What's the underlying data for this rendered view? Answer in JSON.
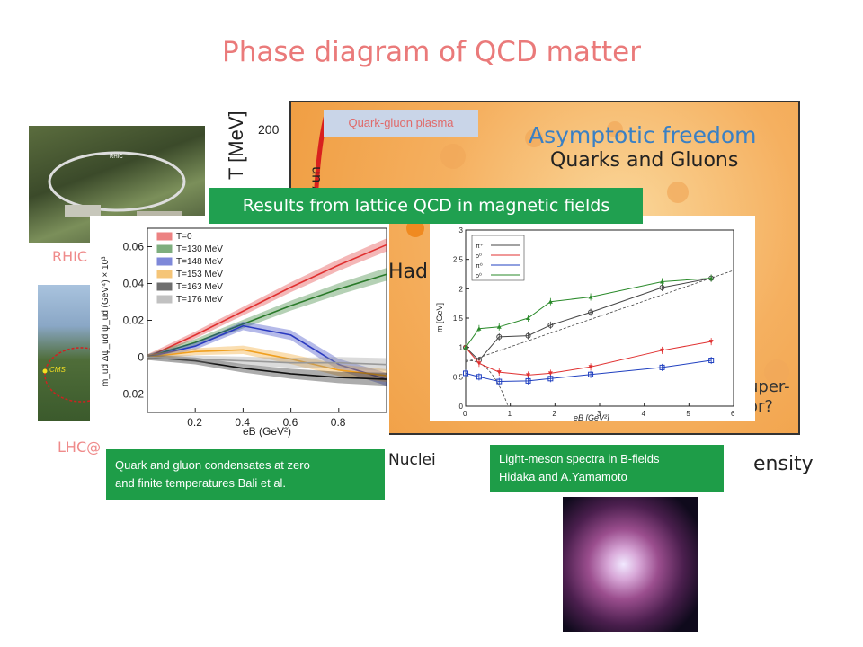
{
  "title": "Phase diagram of QCD matter",
  "labels": {
    "rhic": "RHIC",
    "lhc": "LHC@",
    "cms": "CMS",
    "qgp": "Quark-gluon plasma",
    "lattice": "Results from lattice QCD in magnetic fields",
    "axis_t": "T [MeV]",
    "early": "Early un",
    "tick200": "200",
    "asymptotic": "Asymptotic freedom",
    "quarks_gluons": "Quarks and Gluons",
    "hadron": "Had",
    "nuclei": "Nuclei",
    "super1": "uper-",
    "super2": "or?",
    "density": "ensity"
  },
  "captions": {
    "left_line1": "Quark and gluon condensates at zero",
    "left_line2": "and finite temperatures     Bali et al.",
    "right_line1": "Light-meson spectra in B-fields",
    "right_line2": "Hidaka and A.Yamamoto"
  },
  "colors": {
    "title": "#ea7a7a",
    "green_box": "#1e9d48",
    "qgp_box": "#c9d5e8"
  },
  "left_chart": {
    "ylabel": "m_ud Δψ̄_ud ψ_ud  (GeV⁴) × 10³",
    "xlabel": "eB (GeV²)",
    "xticks": [
      "0.2",
      "0.4",
      "0.6",
      "0.8"
    ],
    "yticks": [
      "0.06",
      "0.04",
      "0.02",
      "0",
      "−0.02"
    ],
    "legend": [
      "T=0",
      "T=130 MeV",
      "T=148 MeV",
      "T=153 MeV",
      "T=163 MeV",
      "T=176 MeV"
    ]
  },
  "right_chart": {
    "ylabel": "m [GeV]",
    "xlabel": "eB [GeV²]",
    "xticks": [
      "0",
      "1",
      "2",
      "3",
      "4",
      "5",
      "6"
    ],
    "yticks": [
      "3",
      "2.5",
      "2",
      "1.5",
      "1",
      "0.5",
      "0"
    ],
    "legend": [
      "π⁺",
      "ρ⁰",
      "π⁰",
      "ρ⁰"
    ]
  },
  "chart_data": [
    {
      "type": "line",
      "xlabel": "eB (GeV²)",
      "ylabel": "m_ud Δψ̄_ud ψ_ud  (GeV⁴) × 10³",
      "xlim": [
        0,
        1.0
      ],
      "ylim": [
        -0.03,
        0.07
      ],
      "x": [
        0,
        0.2,
        0.4,
        0.6,
        0.8,
        1.0
      ],
      "series": [
        {
          "name": "T=0",
          "color": "#e03030",
          "values": [
            0,
            0.012,
            0.025,
            0.038,
            0.05,
            0.061
          ]
        },
        {
          "name": "T=130 MeV",
          "color": "#2a7a2a",
          "values": [
            0,
            0.008,
            0.018,
            0.028,
            0.037,
            0.045
          ]
        },
        {
          "name": "T=148 MeV",
          "color": "#2a3ac0",
          "values": [
            0,
            0.006,
            0.017,
            0.012,
            -0.004,
            -0.012
          ]
        },
        {
          "name": "T=153 MeV",
          "color": "#f0a020",
          "values": [
            0,
            0.003,
            0.004,
            -0.001,
            -0.007,
            -0.01
          ]
        },
        {
          "name": "T=163 MeV",
          "color": "#111111",
          "values": [
            0,
            -0.002,
            -0.006,
            -0.009,
            -0.011,
            -0.012
          ]
        },
        {
          "name": "T=176 MeV",
          "color": "#999999",
          "values": [
            0,
            -0.001,
            -0.002,
            -0.003,
            -0.003,
            -0.004
          ]
        }
      ]
    },
    {
      "type": "scatter",
      "xlabel": "eB [GeV²]",
      "ylabel": "m [GeV]",
      "xlim": [
        0,
        6
      ],
      "ylim": [
        0,
        3
      ],
      "series": [
        {
          "name": "π⁺",
          "color": "#444444",
          "points": [
            [
              0,
              1.0
            ],
            [
              0.3,
              0.78
            ],
            [
              0.75,
              1.18
            ],
            [
              1.4,
              1.2
            ],
            [
              1.9,
              1.38
            ],
            [
              2.8,
              1.6
            ],
            [
              4.4,
              2.02
            ],
            [
              5.5,
              2.18
            ]
          ]
        },
        {
          "name": "ρ⁰",
          "color": "#e03030",
          "points": [
            [
              0,
              1.0
            ],
            [
              0.3,
              0.73
            ],
            [
              0.75,
              0.58
            ],
            [
              1.4,
              0.53
            ],
            [
              1.9,
              0.56
            ],
            [
              2.8,
              0.67
            ],
            [
              4.4,
              0.95
            ],
            [
              5.5,
              1.1
            ]
          ]
        },
        {
          "name": "π⁰",
          "color": "#2040c0",
          "points": [
            [
              0,
              0.56
            ],
            [
              0.3,
              0.5
            ],
            [
              0.75,
              0.42
            ],
            [
              1.4,
              0.43
            ],
            [
              1.9,
              0.47
            ],
            [
              2.8,
              0.54
            ],
            [
              4.4,
              0.66
            ],
            [
              5.5,
              0.78
            ]
          ]
        },
        {
          "name": "ρ⁰",
          "color": "#2a8a2a",
          "points": [
            [
              0,
              1.0
            ],
            [
              0.3,
              1.32
            ],
            [
              0.75,
              1.35
            ],
            [
              1.4,
              1.5
            ],
            [
              1.9,
              1.78
            ],
            [
              2.8,
              1.86
            ],
            [
              4.4,
              2.12
            ],
            [
              5.5,
              2.18
            ]
          ]
        }
      ]
    }
  ]
}
